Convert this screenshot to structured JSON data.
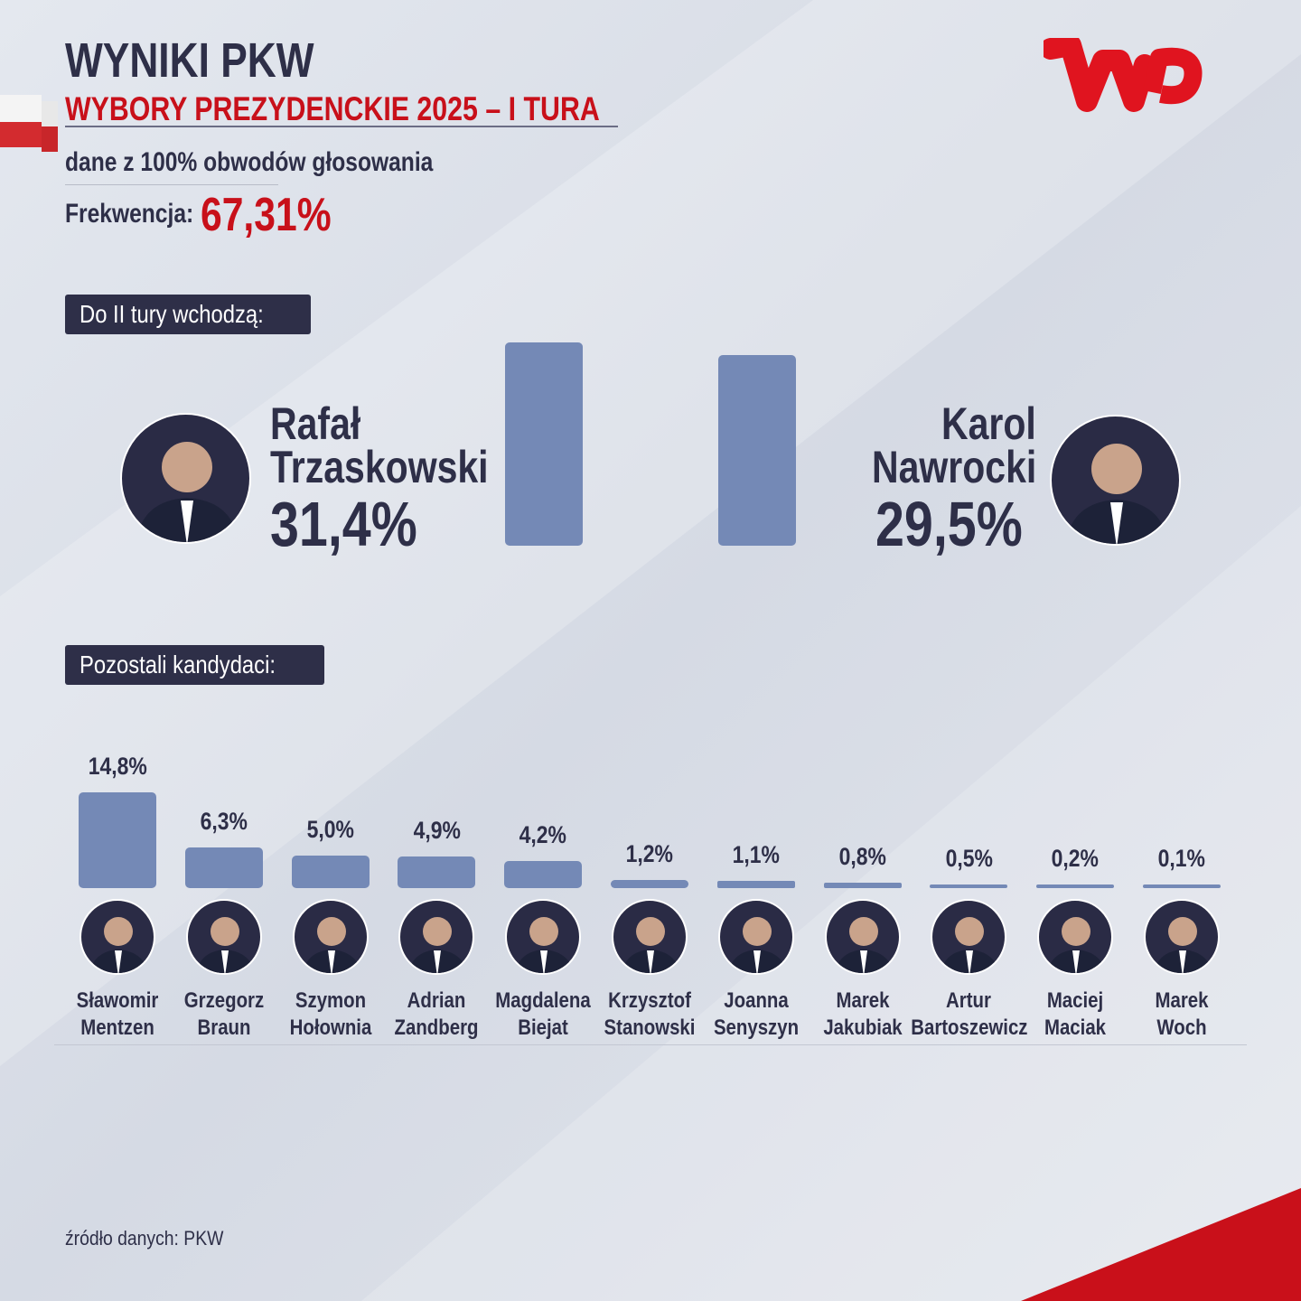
{
  "header": {
    "title": "WYNIKI PKW",
    "subtitle": "WYBORY PREZYDENCKIE 2025 – I TURA",
    "data_scope": "dane z 100% obwodów głosowania",
    "turnout_label": "Frekwencja:",
    "turnout_value": "67,31%",
    "logo": "WP",
    "accent_color": "#d0111b"
  },
  "sections": {
    "runoff": "Do II tury wchodzą:",
    "others": "Pozostali kandydaci:"
  },
  "source": "źródło danych: PKW",
  "chart_data": [
    {
      "type": "bar",
      "categories": [
        "Rafał Trzaskowski",
        "Karol Nawrocki"
      ],
      "first_names": [
        "Rafał",
        "Karol"
      ],
      "last_names": [
        "Trzaskowski",
        "Nawrocki"
      ],
      "values": [
        31.4,
        29.5
      ],
      "labels": [
        "31,4%",
        "29,5%"
      ],
      "bar_color": "#7489b6"
    },
    {
      "type": "bar",
      "categories": [
        "Sławomir Mentzen",
        "Grzegorz Braun",
        "Szymon Hołownia",
        "Adrian Zandberg",
        "Magdalena Biejat",
        "Krzysztof Stanowski",
        "Joanna Senyszyn",
        "Marek Jakubiak",
        "Artur Bartoszewicz",
        "Maciej Maciak",
        "Marek Woch"
      ],
      "first_names": [
        "Sławomir",
        "Grzegorz",
        "Szymon",
        "Adrian",
        "Magdalena",
        "Krzysztof",
        "Joanna",
        "Marek",
        "Artur",
        "Maciej",
        "Marek"
      ],
      "last_names": [
        "Mentzen",
        "Braun",
        "Hołownia",
        "Zandberg",
        "Biejat",
        "Stanowski",
        "Senyszyn",
        "Jakubiak",
        "Bartoszewicz",
        "Maciak",
        "Woch"
      ],
      "values": [
        14.8,
        6.3,
        5.0,
        4.9,
        4.2,
        1.2,
        1.1,
        0.8,
        0.5,
        0.2,
        0.1
      ],
      "labels": [
        "14,8%",
        "6,3%",
        "5,0%",
        "4,9%",
        "4,2%",
        "1,2%",
        "1,1%",
        "0,8%",
        "0,5%",
        "0,2%",
        "0,1%"
      ],
      "bar_color": "#7489b6"
    }
  ]
}
